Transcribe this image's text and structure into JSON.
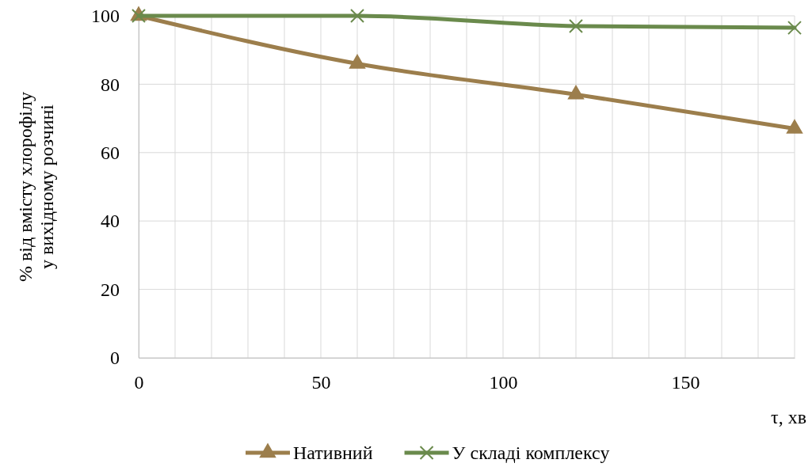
{
  "chart_data": {
    "type": "line",
    "xlabel": "τ, хв",
    "ylabel": "% від вмісту хлорофілу у вихідному розчині",
    "x": [
      0,
      60,
      120,
      180
    ],
    "series": [
      {
        "name": "Нативний",
        "color": "#9c7e4c",
        "values": [
          100,
          86,
          77,
          67
        ],
        "marker": "triangle"
      },
      {
        "name": "У складі комплексу",
        "color": "#6a8a4c",
        "values": [
          100,
          100,
          97,
          96.5
        ],
        "marker": "cross"
      }
    ],
    "xlim": [
      0,
      180
    ],
    "xticks": [
      0,
      {
        "value": 10,
        "label": null
      },
      {
        "value": 20,
        "label": null
      },
      {
        "value": 30,
        "label": null
      },
      {
        "value": 40,
        "label": null
      },
      50,
      {
        "value": 60,
        "label": null
      },
      {
        "value": 70,
        "label": null
      },
      {
        "value": 80,
        "label": null
      },
      {
        "value": 90,
        "label": null
      },
      100,
      {
        "value": 110,
        "label": null
      },
      {
        "value": 120,
        "label": null
      },
      {
        "value": 130,
        "label": null
      },
      {
        "value": 140,
        "label": null
      },
      150,
      {
        "value": 160,
        "label": null
      },
      {
        "value": 170,
        "label": null
      }
    ],
    "ylim": [
      0,
      100
    ],
    "yticks": [
      0,
      20,
      40,
      60,
      80,
      100
    ],
    "grid": true,
    "legend": "bottom"
  }
}
